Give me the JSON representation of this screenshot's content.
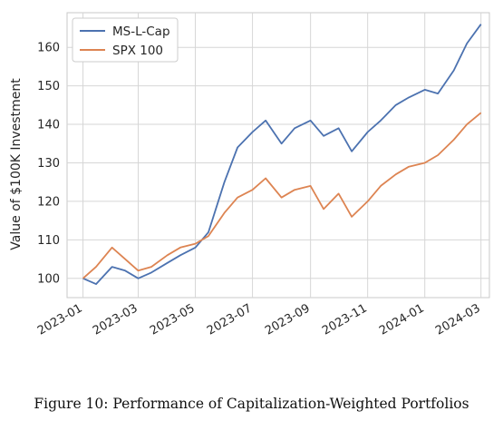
{
  "caption": "Figure 10: Performance of Capitalization-Weighted Portfolios",
  "chart_data": {
    "type": "line",
    "title": "",
    "xlabel": "",
    "ylabel": "Value of $100K Investment",
    "xlim": [
      "2022-12-15",
      "2024-03-10"
    ],
    "ylim": [
      95,
      169
    ],
    "x_ticks": [
      "2023-01",
      "2023-03",
      "2023-05",
      "2023-07",
      "2023-09",
      "2023-11",
      "2024-01",
      "2024-03"
    ],
    "y_ticks": [
      100,
      110,
      120,
      130,
      140,
      150,
      160
    ],
    "grid": true,
    "legend_position": "upper-left",
    "x": [
      "2023-01-01",
      "2023-01-15",
      "2023-02-01",
      "2023-02-15",
      "2023-03-01",
      "2023-03-15",
      "2023-04-01",
      "2023-04-15",
      "2023-05-01",
      "2023-05-15",
      "2023-06-01",
      "2023-06-15",
      "2023-07-01",
      "2023-07-15",
      "2023-08-01",
      "2023-08-15",
      "2023-09-01",
      "2023-09-15",
      "2023-10-01",
      "2023-10-15",
      "2023-11-01",
      "2023-11-15",
      "2023-12-01",
      "2023-12-15",
      "2024-01-01",
      "2024-01-15",
      "2024-02-01",
      "2024-02-15",
      "2024-03-01"
    ],
    "series": [
      {
        "name": "MS-L-Cap",
        "color": "#4c72b0",
        "values": [
          100,
          98.5,
          103,
          102,
          100,
          101.5,
          104,
          106,
          108,
          112,
          125,
          134,
          138,
          141,
          135,
          139,
          141,
          137,
          139,
          133,
          138,
          141,
          145,
          147,
          149,
          148,
          154,
          161,
          166
        ]
      },
      {
        "name": "SPX 100",
        "color": "#dd8452",
        "values": [
          100,
          103,
          108,
          105,
          102,
          103,
          106,
          108,
          109,
          111,
          117,
          121,
          123,
          126,
          121,
          123,
          124,
          118,
          122,
          116,
          120,
          124,
          127,
          129,
          130,
          132,
          136,
          140,
          143
        ]
      }
    ]
  }
}
